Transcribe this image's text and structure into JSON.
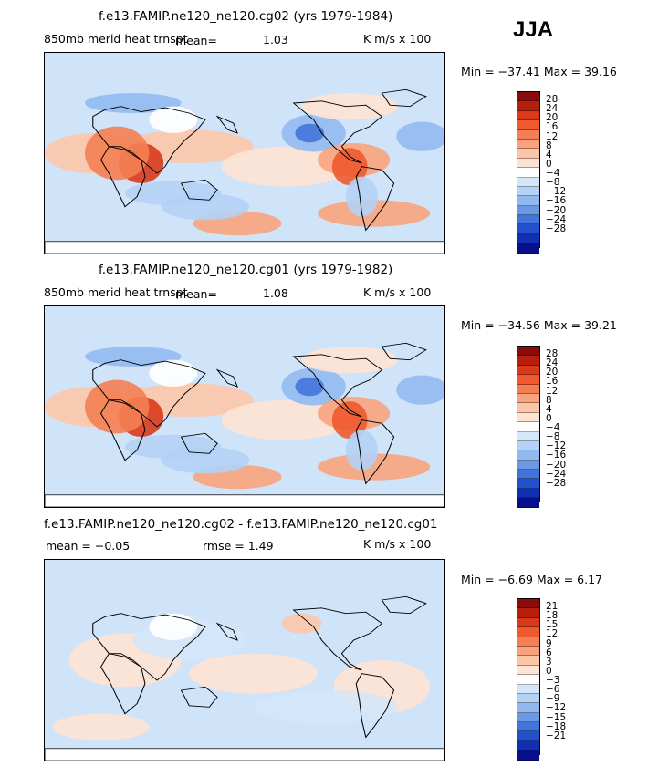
{
  "season": "JJA",
  "panels": [
    {
      "title": "f.e13.FAMIP.ne120_ne120.cg02 (yrs 1979-1984)",
      "left_label": "850mb merid heat trnspt",
      "mean_label": "mean=",
      "mean_value": "1.03",
      "units": "K m/s x 100",
      "minmax": "Min = −37.41 Max = 39.16"
    },
    {
      "title": "f.e13.FAMIP.ne120_ne120.cg01 (yrs 1979-1982)",
      "left_label": "850mb merid heat trnspt",
      "mean_label": "mean=",
      "mean_value": "1.08",
      "units": "K m/s x 100",
      "minmax": "Min = −34.56 Max = 39.21"
    },
    {
      "title": "f.e13.FAMIP.ne120_ne120.cg02 - f.e13.FAMIP.ne120_ne120.cg01",
      "mean_text": "mean =  −0.05",
      "rmse_text": "rmse =  1.49",
      "units": "K m/s x 100",
      "minmax": "Min = −6.69 Max = 6.17"
    }
  ],
  "colorbar_colors": [
    "#8b0a0a",
    "#b51f0c",
    "#d93a1a",
    "#ee5a2e",
    "#f47f53",
    "#f8a37d",
    "#fbc6a8",
    "#fde3d3",
    "#ffffff",
    "#d4e6fa",
    "#b4d2f5",
    "#92b9ef",
    "#6a9ae6",
    "#4374dc",
    "#2350cd",
    "#1030b0",
    "#080f8a"
  ],
  "chart_data": [
    {
      "type": "heatmap",
      "title": "f.e13.FAMIP.ne120_ne120.cg02 (yrs 1979-1984)",
      "variable": "850mb merid heat trnspt",
      "units": "K m/s x 100",
      "mean": 1.03,
      "min": -37.41,
      "max": 39.16,
      "colorbar_levels": [
        28,
        24,
        20,
        16,
        12,
        8,
        4,
        0,
        -4,
        -8,
        -12,
        -16,
        -20,
        -24,
        -28
      ]
    },
    {
      "type": "heatmap",
      "title": "f.e13.FAMIP.ne120_ne120.cg01 (yrs 1979-1982)",
      "variable": "850mb merid heat trnspt",
      "units": "K m/s x 100",
      "mean": 1.08,
      "min": -34.56,
      "max": 39.21,
      "colorbar_levels": [
        28,
        24,
        20,
        16,
        12,
        8,
        4,
        0,
        -4,
        -8,
        -12,
        -16,
        -20,
        -24,
        -28
      ]
    },
    {
      "type": "heatmap",
      "title": "f.e13.FAMIP.ne120_ne120.cg02 - f.e13.FAMIP.ne120_ne120.cg01",
      "units": "K m/s x 100",
      "mean": -0.05,
      "rmse": 1.49,
      "min": -6.69,
      "max": 6.17,
      "colorbar_levels": [
        21,
        18,
        15,
        12,
        9,
        6,
        3,
        0,
        -3,
        -6,
        -9,
        -12,
        -15,
        -18,
        -21
      ]
    }
  ]
}
